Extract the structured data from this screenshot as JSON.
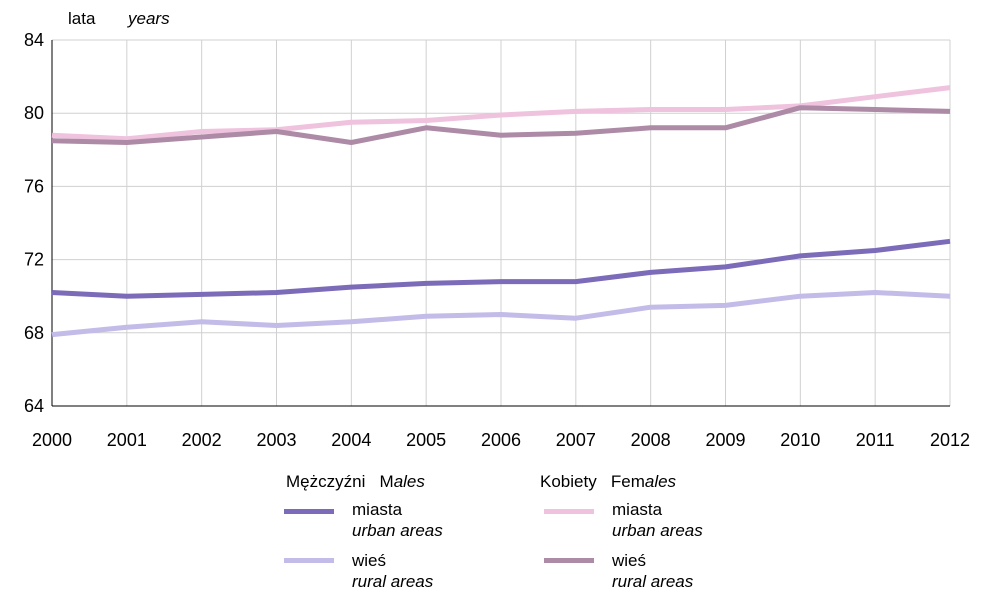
{
  "chart_data": {
    "type": "line",
    "y_unit_label": "lata",
    "y_unit_label_en": "years",
    "ylim": [
      64,
      84
    ],
    "yticks": [
      64,
      68,
      72,
      76,
      80,
      84
    ],
    "grid": true,
    "x": [
      "2000",
      "2001",
      "2002",
      "2003",
      "2004",
      "2005",
      "2006",
      "2007",
      "2008",
      "2009",
      "2010",
      "2011",
      "2012"
    ],
    "series": [
      {
        "name": "miasta",
        "name_en": "urban areas",
        "group": "Mężczyźni",
        "color": "#7b6bb8",
        "values": [
          70.2,
          70.0,
          70.1,
          70.2,
          70.5,
          70.7,
          70.8,
          70.8,
          71.3,
          71.6,
          72.2,
          72.5,
          73.0
        ]
      },
      {
        "name": "wieś",
        "name_en": "rural areas",
        "group": "Mężczyźni",
        "color": "#c3bbe8",
        "values": [
          67.9,
          68.3,
          68.6,
          68.4,
          68.6,
          68.9,
          69.0,
          68.8,
          69.4,
          69.5,
          70.0,
          70.2,
          70.0
        ]
      },
      {
        "name": "miasta",
        "name_en": "urban areas",
        "group": "Kobiety",
        "color": "#efc2dd",
        "values": [
          78.8,
          78.6,
          79.0,
          79.1,
          79.5,
          79.6,
          79.9,
          80.1,
          80.2,
          80.2,
          80.4,
          80.9,
          81.4
        ]
      },
      {
        "name": "wieś",
        "name_en": "rural areas",
        "group": "Kobiety",
        "color": "#ad8aa6",
        "values": [
          78.5,
          78.4,
          78.7,
          79.0,
          78.4,
          79.2,
          78.8,
          78.9,
          79.2,
          79.2,
          80.3,
          80.2,
          80.1
        ]
      }
    ]
  },
  "legend": {
    "males": {
      "pl": "Mężczyźni",
      "en_prefix": "M",
      "en_italic": "ales"
    },
    "females": {
      "pl": "Kobiety",
      "en_prefix": "Fem",
      "en_italic": "ales"
    },
    "urban_pl": "miasta",
    "urban_en": "urban areas",
    "rural_pl": "wieś",
    "rural_en": "rural areas"
  }
}
